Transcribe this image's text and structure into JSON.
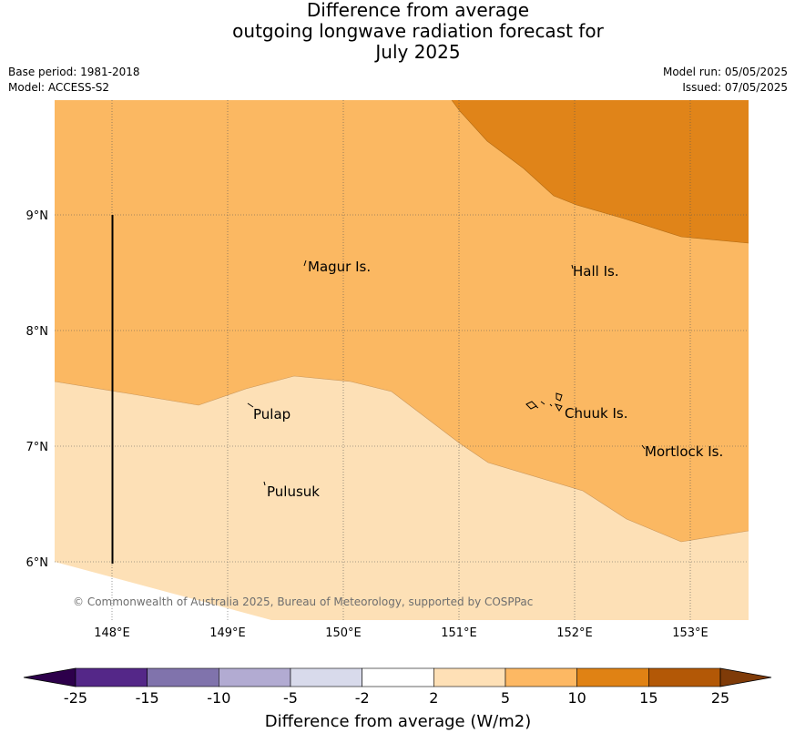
{
  "title": {
    "line1": "Difference from average",
    "line2": "outgoing longwave radiation forecast for",
    "line3": "July 2025"
  },
  "meta": {
    "base_period": "Base period: 1981-2018",
    "model": "Model: ACCESS-S2",
    "model_run": "Model run: 05/05/2025",
    "issued": "Issued: 07/05/2025"
  },
  "map": {
    "lon_ticks": [
      "148°E",
      "149°E",
      "150°E",
      "151°E",
      "152°E",
      "153°E"
    ],
    "lat_ticks": [
      "9°N",
      "8°N",
      "7°N",
      "6°N"
    ],
    "places": [
      "Magur Is.",
      "Hall Is.",
      "Pulap",
      "Chuuk Is.",
      "Mortlock Is.",
      "Pulusuk"
    ],
    "copyright": "© Commonwealth of Australia 2025, Bureau of Meteorology, supported by COSPPac",
    "colors": {
      "band_2_5": "#fde0b6",
      "band_5_10": "#fbb862",
      "band_10_15": "#e08419"
    }
  },
  "colorbar": {
    "ticks": [
      "-25",
      "-15",
      "-10",
      "-5",
      "-2",
      "2",
      "5",
      "10",
      "15",
      "25"
    ],
    "colors": [
      "#2d004b",
      "#542788",
      "#8073ac",
      "#b2abd2",
      "#d8daeb",
      "#ffffff",
      "#fee0b6",
      "#fdb863",
      "#e08214",
      "#b35806",
      "#7f3b08"
    ],
    "label": "Difference from average (W/m2)"
  }
}
